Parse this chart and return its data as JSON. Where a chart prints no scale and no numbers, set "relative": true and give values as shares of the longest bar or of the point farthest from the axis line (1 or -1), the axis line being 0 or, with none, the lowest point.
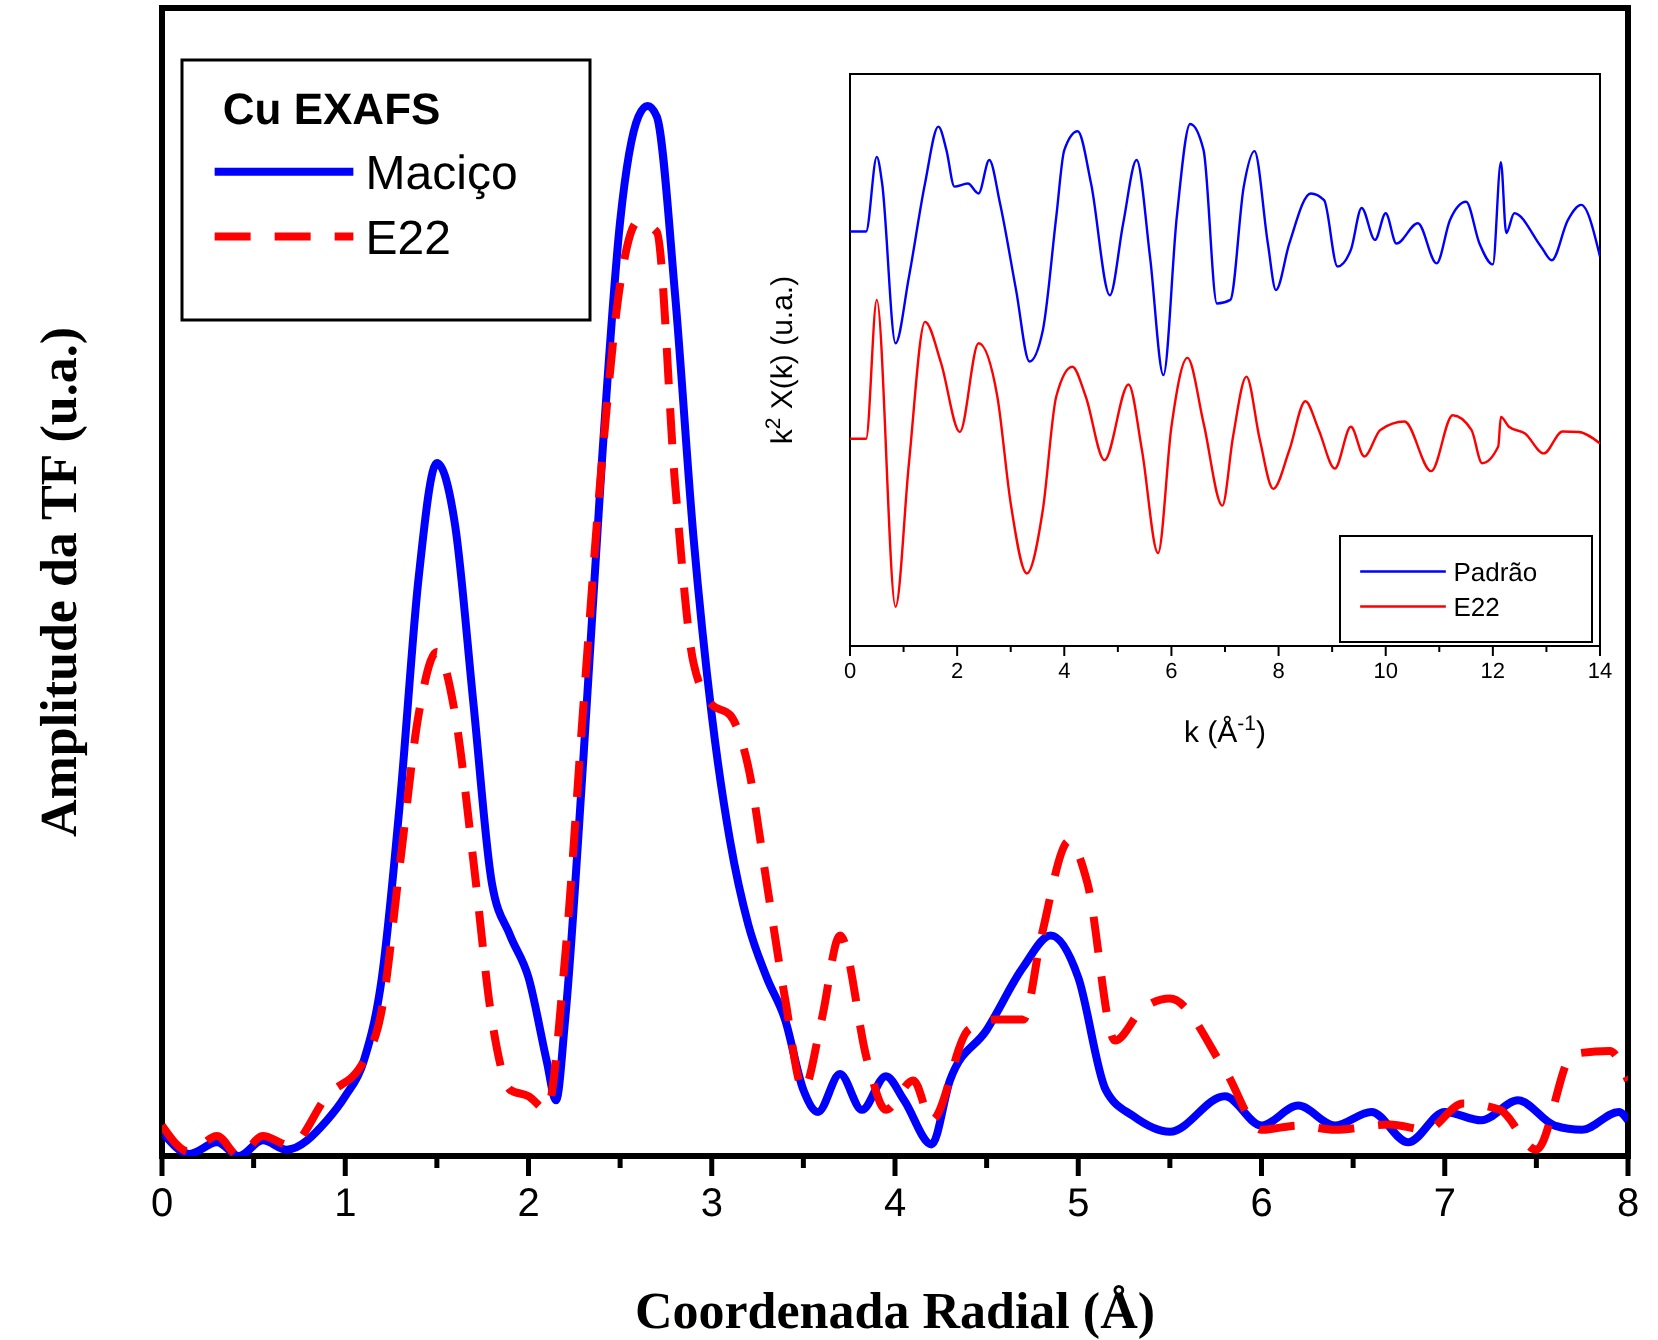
{
  "chart_data": [
    {
      "type": "line",
      "xlabel": "Coordenada Radial (Å)",
      "ylabel": "Amplitude da TF (u.a.)",
      "legend_title": "Cu EXAFS",
      "legend": "top left",
      "relative": true,
      "marker": "none",
      "xlim": [
        0,
        8
      ],
      "xticks": [
        0,
        {
          "value": 0.5,
          "label": null
        },
        1,
        {
          "value": 1.5,
          "label": null
        },
        2,
        {
          "value": 2.5,
          "label": null
        },
        3,
        {
          "value": 3.5,
          "label": null
        },
        4,
        {
          "value": 4.5,
          "label": null
        },
        5,
        {
          "value": 5.5,
          "label": null
        },
        6,
        {
          "value": 6.5,
          "label": null
        },
        7,
        {
          "value": 7.5,
          "label": null
        },
        8
      ],
      "series": [
        {
          "name": "Maciço",
          "color": "#0000ff",
          "line_style": "solid",
          "x": [
            0,
            0.15,
            0.3,
            0.42,
            0.55,
            0.68,
            0.9,
            1.0,
            1.1,
            1.2,
            1.3,
            1.4,
            1.5,
            1.6,
            1.7,
            1.8,
            1.9,
            2.0,
            2.1,
            2.15,
            2.2,
            2.3,
            2.4,
            2.5,
            2.6,
            2.65,
            2.7,
            2.8,
            2.9,
            3.0,
            3.1,
            3.2,
            3.3,
            3.4,
            3.5,
            3.58,
            3.7,
            3.82,
            3.95,
            4.05,
            4.2,
            4.3,
            4.5,
            4.7,
            4.85,
            5.0,
            5.15,
            5.3,
            5.5,
            5.8,
            6.0,
            6.2,
            6.4,
            6.6,
            6.8,
            7.0,
            7.2,
            7.4,
            7.6,
            7.75,
            7.95,
            8.0
          ],
          "values": [
            0.023,
            0.002,
            0.013,
            0.0,
            0.015,
            0.006,
            0.034,
            0.057,
            0.09,
            0.17,
            0.34,
            0.55,
            0.66,
            0.6,
            0.43,
            0.26,
            0.21,
            0.17,
            0.09,
            0.053,
            0.13,
            0.38,
            0.66,
            0.89,
            0.99,
            1.0,
            0.99,
            0.82,
            0.59,
            0.42,
            0.3,
            0.22,
            0.17,
            0.13,
            0.063,
            0.042,
            0.078,
            0.044,
            0.076,
            0.053,
            0.011,
            0.072,
            0.12,
            0.18,
            0.21,
            0.17,
            0.063,
            0.038,
            0.023,
            0.057,
            0.029,
            0.048,
            0.029,
            0.042,
            0.013,
            0.042,
            0.034,
            0.053,
            0.029,
            0.025,
            0.042,
            0.034
          ]
        },
        {
          "name": "E22",
          "color": "#ff0000",
          "line_style": "dashed",
          "x": [
            0,
            0.15,
            0.3,
            0.42,
            0.55,
            0.7,
            0.9,
            1.1,
            1.2,
            1.3,
            1.4,
            1.5,
            1.6,
            1.7,
            1.8,
            1.9,
            2.0,
            2.1,
            2.2,
            2.3,
            2.4,
            2.5,
            2.6,
            2.7,
            2.8,
            2.9,
            3.0,
            3.1,
            3.2,
            3.3,
            3.4,
            3.5,
            3.6,
            3.7,
            3.85,
            3.95,
            4.1,
            4.2,
            4.4,
            4.55,
            4.7,
            4.8,
            4.95,
            5.05,
            5.2,
            5.35,
            5.5,
            5.8,
            6.0,
            6.2,
            6.4,
            6.7,
            6.9,
            7.1,
            7.3,
            7.5,
            7.7,
            7.9,
            8.0
          ],
          "values": [
            0.029,
            0.004,
            0.019,
            0.0,
            0.019,
            0.01,
            0.057,
            0.09,
            0.14,
            0.28,
            0.42,
            0.48,
            0.42,
            0.28,
            0.13,
            0.063,
            0.057,
            0.044,
            0.19,
            0.43,
            0.66,
            0.83,
            0.89,
            0.88,
            0.64,
            0.47,
            0.43,
            0.42,
            0.37,
            0.26,
            0.15,
            0.063,
            0.13,
            0.21,
            0.09,
            0.044,
            0.072,
            0.034,
            0.12,
            0.13,
            0.13,
            0.21,
            0.3,
            0.26,
            0.11,
            0.14,
            0.15,
            0.082,
            0.025,
            0.029,
            0.025,
            0.03,
            0.025,
            0.05,
            0.044,
            0.006,
            0.097,
            0.1,
            0.072
          ]
        }
      ]
    },
    {
      "type": "line",
      "xlabel": "k (Å$^{-1}$)",
      "ylabel": "k$^{2}$ X(k) (u.a.)",
      "legend": "bottom right",
      "relative": true,
      "marker": "none",
      "xlim": [
        0,
        14
      ],
      "xticks": [
        0,
        {
          "value": 1,
          "label": null
        },
        2,
        {
          "value": 3,
          "label": null
        },
        4,
        {
          "value": 5,
          "label": null
        },
        6,
        {
          "value": 7,
          "label": null
        },
        8,
        {
          "value": 9,
          "label": null
        },
        10,
        {
          "value": 11,
          "label": null
        },
        12,
        {
          "value": 13,
          "label": null
        },
        14
      ],
      "series": [
        {
          "name": "Padrão",
          "color": "#0000ff",
          "line_style": "solid",
          "x": [
            0,
            0.3,
            0.5,
            0.6,
            0.85,
            1.1,
            1.4,
            1.65,
            1.8,
            1.95,
            2.2,
            2.4,
            2.6,
            2.8,
            3.1,
            3.35,
            3.6,
            3.85,
            4.0,
            4.25,
            4.5,
            4.85,
            5.1,
            5.35,
            5.6,
            5.85,
            6.1,
            6.35,
            6.6,
            6.85,
            7.1,
            7.35,
            7.55,
            7.8,
            7.95,
            8.2,
            8.6,
            8.85,
            9.1,
            9.35,
            9.55,
            9.8,
            10.0,
            10.2,
            10.6,
            10.95,
            11.2,
            11.5,
            11.75,
            12.0,
            12.15,
            12.25,
            12.4,
            12.9,
            13.1,
            13.4,
            13.65,
            14.0
          ],
          "values": [
            0.794,
            0.794,
            0.937,
            0.886,
            0.58,
            0.707,
            0.886,
            0.995,
            0.95,
            0.88,
            0.886,
            0.867,
            0.931,
            0.848,
            0.682,
            0.545,
            0.605,
            0.822,
            0.95,
            0.986,
            0.886,
            0.672,
            0.81,
            0.931,
            0.746,
            0.519,
            0.822,
            1.0,
            0.95,
            0.656,
            0.663,
            0.88,
            0.948,
            0.771,
            0.682,
            0.771,
            0.867,
            0.854,
            0.727,
            0.759,
            0.839,
            0.778,
            0.829,
            0.771,
            0.81,
            0.733,
            0.816,
            0.851,
            0.771,
            0.731,
            0.927,
            0.791,
            0.829,
            0.765,
            0.739,
            0.816,
            0.845,
            0.746
          ]
        },
        {
          "name": "E22",
          "color": "#ff0000",
          "line_style": "solid",
          "x": [
            0,
            0.3,
            0.5,
            0.85,
            1.1,
            1.4,
            1.7,
            2.05,
            2.4,
            2.75,
            3.0,
            3.3,
            3.6,
            3.85,
            4.15,
            4.4,
            4.75,
            5.2,
            5.45,
            5.75,
            6.0,
            6.3,
            6.6,
            6.95,
            7.15,
            7.4,
            7.65,
            7.9,
            8.2,
            8.5,
            8.75,
            9.05,
            9.35,
            9.6,
            9.9,
            10.35,
            10.85,
            11.25,
            11.6,
            11.8,
            12.1,
            12.15,
            12.3,
            12.6,
            12.95,
            13.3,
            13.6,
            14.0
          ],
          "values": [
            0.397,
            0.397,
            0.663,
            0.075,
            0.35,
            0.621,
            0.542,
            0.41,
            0.58,
            0.478,
            0.273,
            0.139,
            0.261,
            0.478,
            0.535,
            0.478,
            0.356,
            0.501,
            0.375,
            0.178,
            0.42,
            0.552,
            0.427,
            0.269,
            0.401,
            0.516,
            0.395,
            0.301,
            0.375,
            0.469,
            0.414,
            0.34,
            0.42,
            0.363,
            0.414,
            0.43,
            0.335,
            0.442,
            0.414,
            0.35,
            0.382,
            0.439,
            0.42,
            0.407,
            0.369,
            0.411,
            0.41,
            0.388
          ]
        }
      ]
    }
  ]
}
